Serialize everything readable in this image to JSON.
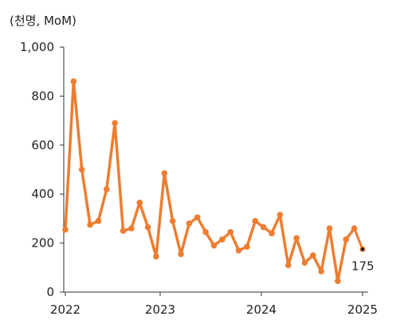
{
  "unit_label": "(천명, MoM)",
  "colors": {
    "series": "#ED7D31",
    "axis": "#333333",
    "end_marker": "#1a1a1a"
  },
  "chart_data": {
    "type": "line",
    "title": "",
    "xlabel": "",
    "ylabel": "(천명, MoM)",
    "ylim": [
      0,
      1000
    ],
    "yticks": [
      0,
      200,
      400,
      600,
      800,
      1000
    ],
    "ytick_labels": [
      "0",
      "200",
      "400",
      "600",
      "800",
      "1,000"
    ],
    "xticks": [
      "2022",
      "2023",
      "2024",
      "2025"
    ],
    "grid": false,
    "legend": "none",
    "x": [
      "2022-01",
      "2022-02",
      "2022-03",
      "2022-04",
      "2022-05",
      "2022-06",
      "2022-07",
      "2022-08",
      "2022-09",
      "2022-10",
      "2022-11",
      "2022-12",
      "2023-01",
      "2023-02",
      "2023-03",
      "2023-04",
      "2023-05",
      "2023-06",
      "2023-07",
      "2023-08",
      "2023-09",
      "2023-10",
      "2023-11",
      "2023-12",
      "2024-01",
      "2024-02",
      "2024-03",
      "2024-04",
      "2024-05",
      "2024-06",
      "2024-07",
      "2024-08",
      "2024-09",
      "2024-10",
      "2024-11",
      "2024-12",
      "2025-01"
    ],
    "series": [
      {
        "values": [
          255,
          860,
          500,
          275,
          290,
          420,
          690,
          250,
          260,
          365,
          265,
          145,
          485,
          290,
          155,
          280,
          305,
          245,
          190,
          215,
          245,
          170,
          185,
          290,
          265,
          240,
          315,
          110,
          220,
          120,
          150,
          85,
          260,
          45,
          215,
          260,
          175
        ]
      }
    ],
    "end_label": "175"
  }
}
